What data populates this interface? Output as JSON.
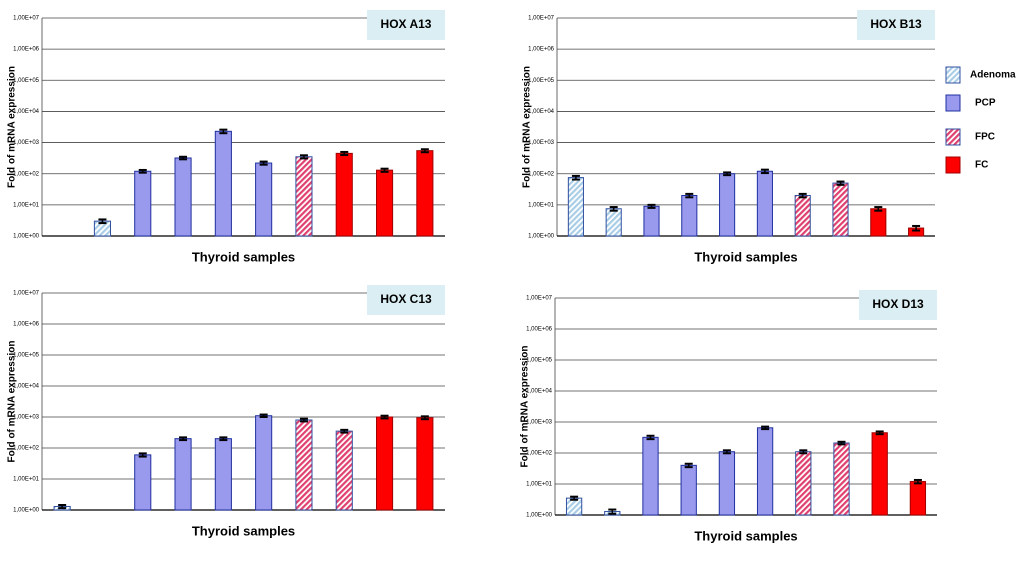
{
  "legend": [
    {
      "name": "Adenoma",
      "color": "#a9cde6",
      "hatch": true
    },
    {
      "name": "PCP",
      "color": "#9999ee",
      "hatch": false
    },
    {
      "name": "FPC",
      "color": "#e0406e",
      "hatch": true
    },
    {
      "name": "FC",
      "color": "#ff0000",
      "hatch": false
    }
  ],
  "chart_data": [
    {
      "type": "bar",
      "title": "HOX A13",
      "x_label": "Thyroid samples",
      "y_label": "Fold of mRNA expression",
      "log_scale": true,
      "grid": true,
      "categories": [
        null,
        null,
        null,
        null,
        null,
        null,
        null,
        null,
        null,
        null
      ],
      "values": [
        null,
        3,
        120,
        320,
        2300,
        220,
        350,
        450,
        130,
        550
      ],
      "errors": [
        null,
        0.4,
        12,
        30,
        300,
        25,
        40,
        50,
        15,
        60
      ],
      "groups": [
        null,
        0,
        1,
        1,
        1,
        1,
        2,
        3,
        3,
        3
      ],
      "ylim": [
        1,
        10000000
      ],
      "yticks": [
        {
          "value": 1,
          "label": "1,00E+00"
        },
        {
          "value": 10,
          "label": "1,00E+01"
        },
        {
          "value": 100,
          "label": "1,00E+02"
        },
        {
          "value": 1000,
          "label": "1,00E+03"
        },
        {
          "value": 10000,
          "label": "1,00E+04"
        },
        {
          "value": 100000,
          "label": "1,00E+05"
        },
        {
          "value": 1000000,
          "label": "1,00E+06"
        },
        {
          "value": 10000000,
          "label": "1,00E+07"
        }
      ]
    },
    {
      "type": "bar",
      "title": "HOX B13",
      "x_label": "Thyroid samples",
      "y_label": "Fold of mRNA expression",
      "log_scale": true,
      "grid": true,
      "categories": [
        null,
        null,
        null,
        null,
        null,
        null,
        null,
        null,
        null,
        null
      ],
      "values": [
        75,
        7.5,
        9,
        20,
        100,
        120,
        20,
        50,
        7.5,
        1.8
      ],
      "errors": [
        10,
        1,
        1,
        2.5,
        10,
        15,
        2.5,
        6,
        1,
        0.3
      ],
      "groups": [
        0,
        0,
        1,
        1,
        1,
        1,
        2,
        2,
        3,
        3
      ],
      "ylim": [
        1,
        10000000
      ],
      "yticks": [
        {
          "value": 1,
          "label": "1,00E+00"
        },
        {
          "value": 10,
          "label": "1,00E+01"
        },
        {
          "value": 100,
          "label": "1,00E+02"
        },
        {
          "value": 1000,
          "label": "1,00E+03"
        },
        {
          "value": 10000,
          "label": "1,00E+04"
        },
        {
          "value": 100000,
          "label": "1,00E+05"
        },
        {
          "value": 1000000,
          "label": "1,00E+06"
        },
        {
          "value": 10000000,
          "label": "1,00E+07"
        }
      ]
    },
    {
      "type": "bar",
      "title": "HOX C13",
      "x_label": "Thyroid samples",
      "y_label": "Fold of mRNA expression",
      "log_scale": true,
      "grid": true,
      "categories": [
        null,
        null,
        null,
        null,
        null,
        null,
        null,
        null,
        null,
        null
      ],
      "values": [
        1.3,
        null,
        60,
        200,
        200,
        1100,
        800,
        350,
        1000,
        950
      ],
      "errors": [
        0.15,
        null,
        7,
        20,
        20,
        100,
        80,
        35,
        100,
        100
      ],
      "groups": [
        0,
        null,
        1,
        1,
        1,
        1,
        2,
        2,
        3,
        3
      ],
      "ylim": [
        1,
        10000000
      ],
      "yticks": [
        {
          "value": 1,
          "label": "1,00E+00"
        },
        {
          "value": 10,
          "label": "1,00E+01"
        },
        {
          "value": 100,
          "label": "1,00E+02"
        },
        {
          "value": 1000,
          "label": "1,00E+03"
        },
        {
          "value": 10000,
          "label": "1,00E+04"
        },
        {
          "value": 100000,
          "label": "1,00E+05"
        },
        {
          "value": 1000000,
          "label": "1,00E+06"
        },
        {
          "value": 10000000,
          "label": "1,00E+07"
        }
      ]
    },
    {
      "type": "bar",
      "title": "HOX D13",
      "x_label": "Thyroid samples",
      "y_label": "Fold of mRNA expression",
      "log_scale": true,
      "grid": true,
      "categories": [
        null,
        null,
        null,
        null,
        null,
        null,
        null,
        null,
        null,
        null
      ],
      "values": [
        3.5,
        1.3,
        320,
        40,
        110,
        650,
        110,
        210,
        450,
        12
      ],
      "errors": [
        0.4,
        0.2,
        40,
        5,
        12,
        60,
        12,
        20,
        45,
        1.5
      ],
      "groups": [
        0,
        0,
        1,
        1,
        1,
        1,
        2,
        2,
        3,
        3
      ],
      "ylim": [
        1,
        10000000
      ],
      "yticks": [
        {
          "value": 1,
          "label": "1,00E+00"
        },
        {
          "value": 10,
          "label": "1,00E+01"
        },
        {
          "value": 100,
          "label": "1,00E+02"
        },
        {
          "value": 1000,
          "label": "1,00E+03"
        },
        {
          "value": 10000,
          "label": "1,00E+04"
        },
        {
          "value": 100000,
          "label": "1,00E+05"
        },
        {
          "value": 1000000,
          "label": "1,00E+06"
        },
        {
          "value": 10000000,
          "label": "1,00E+07"
        }
      ]
    }
  ]
}
